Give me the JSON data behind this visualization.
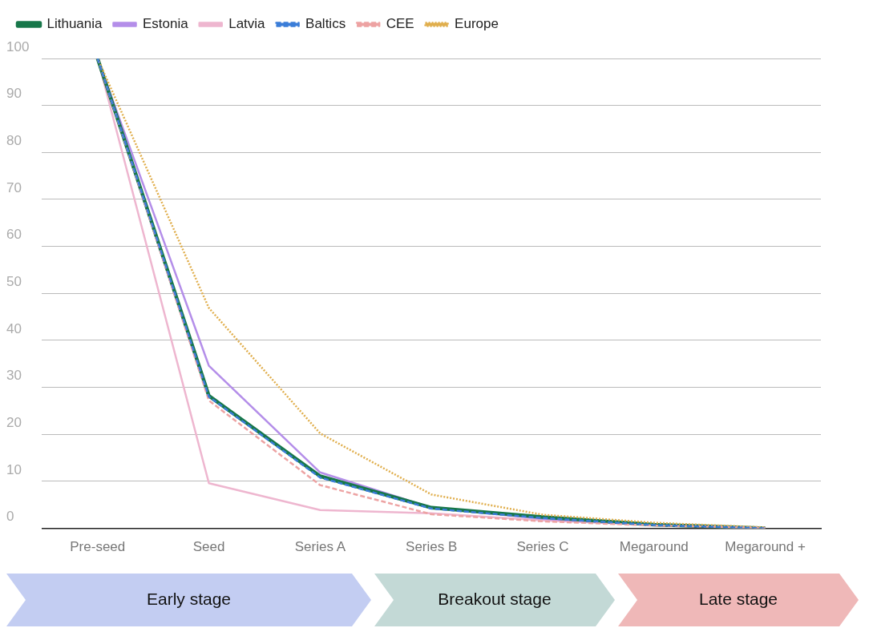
{
  "chart_data": {
    "type": "line",
    "categories": [
      "Pre-seed",
      "Seed",
      "Series A",
      "Series B",
      "Series C",
      "Megaround",
      "Megaround +"
    ],
    "series": [
      {
        "name": "Lithuania",
        "color": "#17774a",
        "line_style": "solid",
        "values": [
          100,
          28.2,
          11.1,
          4.4,
          2.4,
          0.8,
          0
        ]
      },
      {
        "name": "Estonia",
        "color": "#b48ee9",
        "line_style": "solid",
        "values": [
          100,
          34.6,
          11.9,
          4.4,
          2.0,
          0.7,
          0
        ]
      },
      {
        "name": "Latvia",
        "color": "#eeb6cf",
        "line_style": "solid",
        "values": [
          100,
          9.6,
          3.9,
          3.2,
          1.7,
          0.7,
          0
        ]
      },
      {
        "name": "Baltics",
        "color": "#3b7dd8",
        "line_style": "dashed",
        "values": [
          100,
          28,
          10.8,
          4.2,
          2.2,
          0.7,
          0
        ]
      },
      {
        "name": "CEE",
        "color": "#eda3a3",
        "line_style": "dashed",
        "values": [
          100,
          27.2,
          9.2,
          3.0,
          1.5,
          0.6,
          0.1
        ]
      },
      {
        "name": "Europe",
        "color": "#e0ae4c",
        "line_style": "dotted",
        "values": [
          100,
          46.9,
          20.2,
          7.2,
          2.9,
          1.2,
          0.2
        ]
      }
    ],
    "ylim": [
      0,
      100
    ],
    "yticks": [
      0,
      10,
      20,
      30,
      40,
      50,
      60,
      70,
      80,
      90,
      100
    ],
    "grid": "y",
    "legend": "top left",
    "marker": "none",
    "annotations": [
      "Early stage",
      "Breakout stage",
      "Late stage"
    ]
  }
}
